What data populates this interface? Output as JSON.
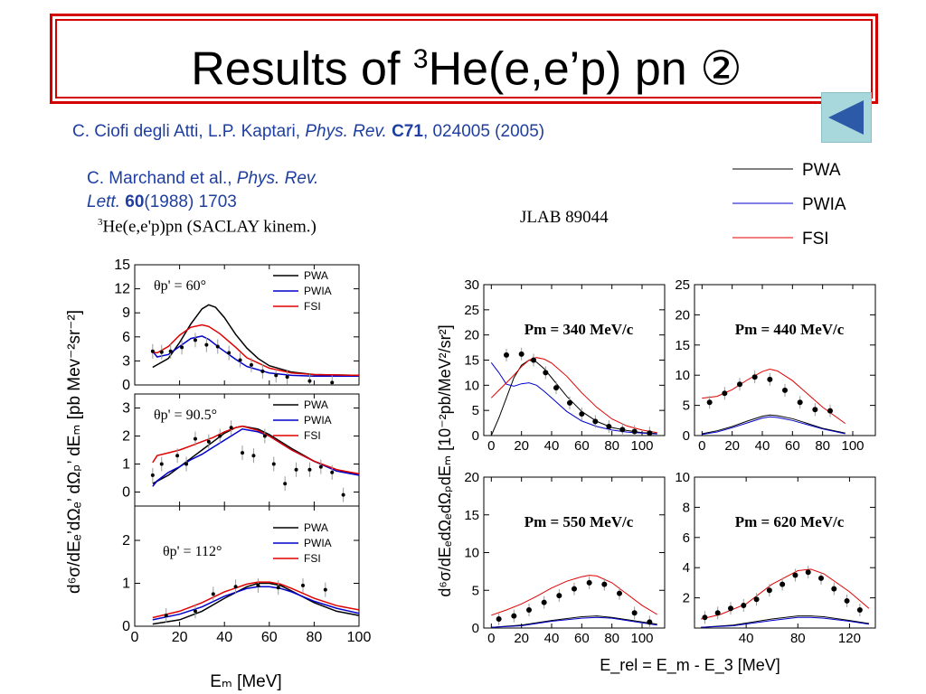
{
  "slide": {
    "title_pre": "Results of ",
    "title_sup": "3",
    "title_post": "He(e,e’p) pn  ②",
    "back_icon": "back-triangle-icon",
    "ref1": {
      "authors": "C. Ciofi degli Atti, L.P. Kaptari, ",
      "journal": "Phys. Rev. ",
      "volume": "C71",
      "rest": ", 024005 (2005)"
    },
    "ref2": {
      "authors": "C. Marchand et al., ",
      "journal1": "Phys. Rev.",
      "journal2": "Lett. ",
      "volume": "60",
      "rest": "(1988) 1703"
    },
    "left_caption_sup": "3",
    "left_caption": "He(e,e'p)pn (SACLAY kinem.)",
    "right_caption": "JLAB 89044",
    "legend": [
      {
        "label": "PWA",
        "color": "#000000"
      },
      {
        "label": "PWIA",
        "color": "#0000cc"
      },
      {
        "label": "FSI",
        "color": "#e00000"
      }
    ]
  },
  "left_chart": {
    "ylabel": "d⁶σ/dEₑ’dΩₑ’ dΩₚ’ dEₘ [pb Mev⁻²sr⁻²]",
    "xlabel": "Eₘ [MeV]",
    "xticks": [
      "0",
      "20",
      "40",
      "60",
      "80",
      "100"
    ],
    "angles": [
      "θp' = 60°",
      "θp' = 90.5°",
      "θp' = 112°"
    ]
  },
  "right_chart": {
    "ylabel": "d⁶σ/dEₑdΩₑdΩₚdEₘ [10⁻²pb/MeV²/sr²]",
    "xlabel": "E_rel = E_m - E_3 [MeV]",
    "panels": [
      "Pm = 340 MeV/c",
      "Pm = 440 MeV/c",
      "Pm = 550 MeV/c",
      "Pm = 620 MeV/c"
    ]
  },
  "chart_data": [
    {
      "type": "line",
      "title": "θp' = 60°",
      "xlabel": "Eₘ [MeV]",
      "ylim": [
        0,
        15
      ],
      "xlim": [
        0,
        100
      ],
      "yticks": [
        0,
        3,
        6,
        9,
        12,
        15
      ],
      "series": [
        {
          "name": "PWA",
          "color": "#000000",
          "x": [
            8,
            15,
            20,
            25,
            30,
            33,
            36,
            40,
            45,
            50,
            55,
            60,
            70,
            80,
            100
          ],
          "y": [
            2.2,
            3.3,
            5.3,
            7.6,
            9.5,
            10.0,
            9.7,
            8.4,
            6.3,
            4.6,
            3.3,
            2.4,
            1.6,
            1.3,
            1.2
          ]
        },
        {
          "name": "PWIA",
          "color": "#0000cc",
          "x": [
            8,
            10,
            15,
            20,
            25,
            30,
            33,
            38,
            45,
            50,
            60,
            70,
            80,
            100
          ],
          "y": [
            4.2,
            3.5,
            3.8,
            4.8,
            5.8,
            6.1,
            5.7,
            4.6,
            3.2,
            2.3,
            1.5,
            1.2,
            1.1,
            1.1
          ]
        },
        {
          "name": "FSI",
          "color": "#e00000",
          "x": [
            8,
            10,
            15,
            20,
            25,
            30,
            33,
            38,
            45,
            50,
            60,
            70,
            80,
            100
          ],
          "y": [
            4.1,
            4.0,
            4.8,
            6.2,
            7.2,
            7.5,
            7.3,
            6.4,
            4.7,
            3.4,
            2.1,
            1.5,
            1.3,
            1.2
          ]
        },
        {
          "name": "data",
          "x": [
            8,
            12,
            16,
            21,
            27,
            32,
            37,
            42,
            47,
            52,
            57,
            63,
            68,
            78,
            88
          ],
          "y": [
            4.2,
            4.1,
            4.2,
            4.7,
            5.6,
            5.0,
            4.8,
            4.0,
            3.1,
            2.5,
            1.7,
            1.2,
            1.0,
            0.5,
            0.3
          ]
        }
      ]
    },
    {
      "type": "line",
      "title": "θp' = 90.5°",
      "ylim": [
        -0.5,
        3.5
      ],
      "xlim": [
        0,
        100
      ],
      "yticks": [
        0,
        1,
        2,
        3
      ],
      "series": [
        {
          "name": "PWA",
          "color": "#000000",
          "x": [
            8,
            15,
            20,
            25,
            30,
            35,
            40,
            45,
            48,
            55,
            60,
            70,
            80,
            90,
            100
          ],
          "y": [
            0.3,
            0.6,
            0.9,
            1.2,
            1.5,
            1.8,
            2.1,
            2.3,
            2.35,
            2.25,
            2.05,
            1.55,
            1.1,
            0.8,
            0.6
          ]
        },
        {
          "name": "PWIA",
          "color": "#0000cc",
          "x": [
            8,
            10,
            15,
            20,
            25,
            30,
            35,
            40,
            45,
            48,
            55,
            60,
            70,
            80,
            90,
            100
          ],
          "y": [
            0.2,
            0.4,
            0.7,
            0.9,
            1.15,
            1.35,
            1.6,
            1.85,
            2.1,
            2.25,
            2.15,
            2.0,
            1.5,
            1.1,
            0.75,
            0.6
          ]
        },
        {
          "name": "FSI",
          "color": "#e00000",
          "x": [
            8,
            10,
            15,
            20,
            25,
            30,
            35,
            40,
            45,
            48,
            55,
            60,
            70,
            80,
            90,
            100
          ],
          "y": [
            1.05,
            1.3,
            1.4,
            1.5,
            1.65,
            1.8,
            1.95,
            2.15,
            2.3,
            2.35,
            2.2,
            2.0,
            1.5,
            1.1,
            0.8,
            0.65
          ]
        },
        {
          "name": "data",
          "x": [
            8,
            12,
            19,
            23,
            27,
            33,
            38,
            43,
            48,
            53,
            58,
            62,
            67,
            72,
            78,
            83,
            88,
            93
          ],
          "y": [
            0.6,
            1.0,
            1.3,
            1.0,
            1.9,
            1.8,
            2.0,
            2.3,
            1.4,
            1.3,
            2.0,
            1.0,
            0.3,
            0.8,
            0.8,
            0.9,
            0.7,
            -0.1
          ]
        }
      ]
    },
    {
      "type": "line",
      "title": "θp' = 112°",
      "ylim": [
        0,
        2.8
      ],
      "xlim": [
        0,
        100
      ],
      "yticks": [
        0,
        1,
        2
      ],
      "series": [
        {
          "name": "PWA",
          "color": "#000000",
          "x": [
            8,
            20,
            30,
            40,
            50,
            55,
            60,
            65,
            70,
            80,
            90,
            100
          ],
          "y": [
            0.05,
            0.15,
            0.35,
            0.65,
            0.92,
            1.0,
            1.0,
            0.95,
            0.82,
            0.55,
            0.35,
            0.25
          ]
        },
        {
          "name": "PWIA",
          "color": "#0000cc",
          "x": [
            8,
            20,
            30,
            40,
            50,
            55,
            60,
            65,
            70,
            80,
            90,
            100
          ],
          "y": [
            0.15,
            0.28,
            0.45,
            0.7,
            0.88,
            0.92,
            0.92,
            0.88,
            0.8,
            0.58,
            0.42,
            0.3
          ]
        },
        {
          "name": "FSI",
          "color": "#e00000",
          "x": [
            8,
            20,
            30,
            40,
            50,
            55,
            60,
            65,
            70,
            80,
            90,
            100
          ],
          "y": [
            0.2,
            0.35,
            0.55,
            0.8,
            0.98,
            1.03,
            1.03,
            0.98,
            0.88,
            0.65,
            0.48,
            0.38
          ]
        },
        {
          "name": "data",
          "x": [
            14,
            27,
            35,
            45,
            55,
            64,
            75,
            85
          ],
          "y": [
            0.25,
            0.35,
            0.75,
            0.92,
            0.95,
            0.9,
            0.95,
            0.85
          ]
        }
      ]
    },
    {
      "type": "line",
      "title": "Pm = 340 MeV/c",
      "xlim": [
        -5,
        115
      ],
      "ylim": [
        0,
        30
      ],
      "xticks": [
        0,
        20,
        40,
        60,
        80,
        100
      ],
      "yticks": [
        0,
        5,
        10,
        15,
        20,
        25,
        30
      ],
      "series": [
        {
          "name": "PWA",
          "color": "#000000",
          "x": [
            0,
            5,
            10,
            15,
            20,
            25,
            30,
            35,
            40,
            50,
            60,
            70,
            80,
            90,
            100,
            110
          ],
          "y": [
            0,
            3.5,
            7.5,
            11.5,
            14.0,
            15.0,
            14.6,
            13.3,
            11.5,
            7.8,
            4.8,
            2.8,
            1.6,
            1.0,
            0.6,
            0.4
          ]
        },
        {
          "name": "PWIA",
          "color": "#0000cc",
          "x": [
            0,
            5,
            10,
            15,
            20,
            25,
            30,
            35,
            40,
            50,
            60,
            70,
            80,
            90,
            100,
            110
          ],
          "y": [
            14.5,
            12.5,
            10.2,
            9.8,
            10.3,
            10.5,
            10.0,
            8.8,
            7.5,
            4.8,
            2.9,
            1.8,
            1.1,
            0.7,
            0.5,
            0.3
          ]
        },
        {
          "name": "FSI",
          "color": "#e00000",
          "x": [
            0,
            5,
            10,
            15,
            20,
            25,
            30,
            35,
            40,
            50,
            60,
            70,
            80,
            90,
            100,
            110
          ],
          "y": [
            7.5,
            9.0,
            10.5,
            12.0,
            13.7,
            15.0,
            15.5,
            15.2,
            14.4,
            11.8,
            8.5,
            5.6,
            3.3,
            1.9,
            1.1,
            0.6
          ]
        },
        {
          "name": "data",
          "x": [
            10,
            20,
            28,
            36,
            43,
            52,
            60,
            69,
            78,
            87,
            95,
            105
          ],
          "y": [
            16.0,
            16.2,
            15.0,
            12.5,
            9.5,
            6.5,
            4.3,
            2.8,
            1.8,
            1.2,
            0.8,
            0.5
          ]
        }
      ]
    },
    {
      "type": "line",
      "title": "Pm = 440 MeV/c",
      "xlim": [
        -5,
        115
      ],
      "ylim": [
        0,
        25
      ],
      "xticks": [
        0,
        20,
        40,
        60,
        80,
        100
      ],
      "yticks": [
        0,
        5,
        10,
        15,
        20,
        25
      ],
      "series": [
        {
          "name": "PWA",
          "color": "#000000",
          "x": [
            0,
            10,
            20,
            30,
            40,
            45,
            50,
            60,
            70,
            80,
            95
          ],
          "y": [
            0.3,
            0.8,
            1.5,
            2.4,
            3.2,
            3.4,
            3.3,
            2.8,
            2.0,
            1.2,
            0.4
          ]
        },
        {
          "name": "PWIA",
          "color": "#0000cc",
          "x": [
            0,
            10,
            20,
            30,
            40,
            45,
            50,
            60,
            70,
            80,
            95
          ],
          "y": [
            0.2,
            0.6,
            1.3,
            2.1,
            2.9,
            3.1,
            3.0,
            2.5,
            1.8,
            1.1,
            0.3
          ]
        },
        {
          "name": "FSI",
          "color": "#e00000",
          "x": [
            0,
            10,
            20,
            30,
            40,
            45,
            50,
            60,
            70,
            80,
            95
          ],
          "y": [
            6.2,
            6.5,
            7.6,
            9.2,
            10.6,
            11.0,
            10.7,
            9.1,
            6.9,
            4.7,
            2.0
          ]
        },
        {
          "name": "data",
          "x": [
            5,
            15,
            25,
            35,
            45,
            55,
            65,
            75,
            85
          ],
          "y": [
            5.5,
            7.0,
            8.5,
            9.7,
            9.3,
            7.5,
            5.5,
            4.3,
            4.1
          ]
        }
      ]
    },
    {
      "type": "line",
      "title": "Pm = 550 MeV/c",
      "xlim": [
        -5,
        115
      ],
      "ylim": [
        0,
        20
      ],
      "xticks": [
        0,
        20,
        40,
        60,
        80,
        100
      ],
      "yticks": [
        0,
        5,
        10,
        15,
        20
      ],
      "series": [
        {
          "name": "PWA",
          "color": "#000000",
          "x": [
            0,
            20,
            40,
            60,
            70,
            80,
            100,
            110
          ],
          "y": [
            0.1,
            0.4,
            1.0,
            1.5,
            1.6,
            1.4,
            0.8,
            0.5
          ]
        },
        {
          "name": "PWIA",
          "color": "#0000cc",
          "x": [
            0,
            20,
            40,
            60,
            70,
            80,
            100,
            110
          ],
          "y": [
            0.1,
            0.3,
            0.9,
            1.3,
            1.4,
            1.3,
            0.7,
            0.4
          ]
        },
        {
          "name": "FSI",
          "color": "#e00000",
          "x": [
            0,
            10,
            20,
            30,
            40,
            50,
            60,
            65,
            70,
            80,
            90,
            100,
            110
          ],
          "y": [
            1.7,
            2.4,
            3.2,
            4.2,
            5.3,
            6.2,
            6.8,
            7.0,
            6.9,
            6.0,
            4.5,
            3.0,
            1.8
          ]
        },
        {
          "name": "data",
          "x": [
            5,
            15,
            25,
            35,
            45,
            55,
            65,
            75,
            85,
            95,
            105
          ],
          "y": [
            1.2,
            1.6,
            2.4,
            3.4,
            4.3,
            5.2,
            6.0,
            5.8,
            4.6,
            2.0,
            0.8
          ]
        }
      ]
    },
    {
      "type": "line",
      "title": "Pm = 620 MeV/c",
      "xlim": [
        0,
        140
      ],
      "ylim": [
        0,
        10
      ],
      "xticks": [
        40,
        80,
        120
      ],
      "yticks": [
        2,
        4,
        6,
        8,
        10
      ],
      "series": [
        {
          "name": "PWA",
          "color": "#000000",
          "x": [
            5,
            30,
            60,
            80,
            90,
            100,
            120,
            135
          ],
          "y": [
            0.05,
            0.2,
            0.6,
            0.8,
            0.8,
            0.75,
            0.5,
            0.3
          ]
        },
        {
          "name": "PWIA",
          "color": "#0000cc",
          "x": [
            5,
            30,
            60,
            80,
            90,
            100,
            120,
            135
          ],
          "y": [
            0.05,
            0.15,
            0.5,
            0.7,
            0.7,
            0.65,
            0.45,
            0.25
          ]
        },
        {
          "name": "FSI",
          "color": "#e00000",
          "x": [
            5,
            20,
            40,
            60,
            80,
            90,
            100,
            120,
            135
          ],
          "y": [
            0.6,
            0.9,
            1.6,
            2.9,
            3.8,
            3.9,
            3.6,
            2.4,
            1.3
          ]
        },
        {
          "name": "data",
          "x": [
            8,
            18,
            28,
            38,
            48,
            58,
            68,
            78,
            88,
            98,
            108,
            118,
            128
          ],
          "y": [
            0.7,
            1.0,
            1.3,
            1.5,
            1.9,
            2.5,
            2.9,
            3.5,
            3.7,
            3.3,
            2.6,
            1.8,
            1.2
          ]
        }
      ]
    }
  ]
}
